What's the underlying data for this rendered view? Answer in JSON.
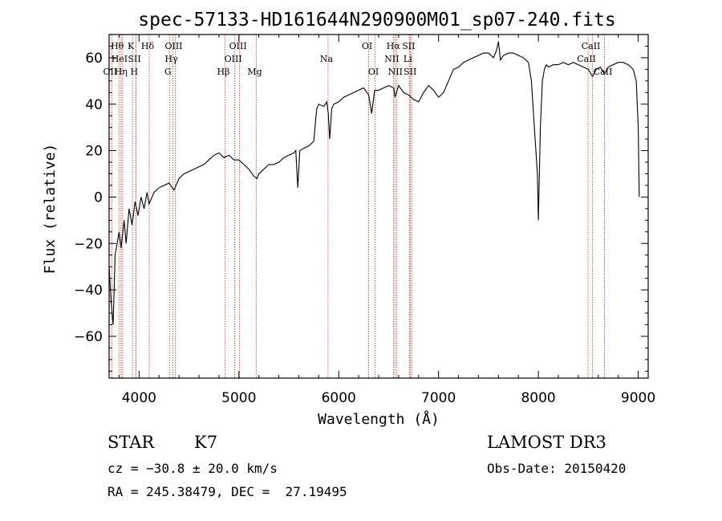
{
  "chart_data": {
    "type": "line",
    "title": "spec-57133-HD161644N290900M01_sp07-240.fits",
    "xlabel": "Wavelength (Å)",
    "ylabel": "Flux (relative)",
    "xlim": [
      3700,
      9100
    ],
    "ylim": [
      -78,
      70
    ],
    "x_ticks": [
      4000,
      5000,
      6000,
      7000,
      8000,
      9000
    ],
    "y_ticks": [
      -60,
      -40,
      -20,
      0,
      20,
      40,
      60
    ],
    "grid": false,
    "line_color": "#000000",
    "marker_color": "#cc3333",
    "series": [
      {
        "values": [
          [
            3700,
            -30
          ],
          [
            3720,
            -45
          ],
          [
            3740,
            -55
          ],
          [
            3760,
            -25
          ],
          [
            3780,
            -20
          ],
          [
            3800,
            -15
          ],
          [
            3820,
            -22
          ],
          [
            3850,
            -10
          ],
          [
            3870,
            -20
          ],
          [
            3900,
            -5
          ],
          [
            3930,
            -12
          ],
          [
            3960,
            -2
          ],
          [
            3990,
            -8
          ],
          [
            4020,
            0
          ],
          [
            4050,
            -5
          ],
          [
            4080,
            2
          ],
          [
            4100,
            -3
          ],
          [
            4150,
            2
          ],
          [
            4200,
            4
          ],
          [
            4250,
            5
          ],
          [
            4300,
            6
          ],
          [
            4350,
            3
          ],
          [
            4400,
            8
          ],
          [
            4450,
            10
          ],
          [
            4500,
            11
          ],
          [
            4550,
            12
          ],
          [
            4600,
            13
          ],
          [
            4650,
            14
          ],
          [
            4700,
            16
          ],
          [
            4750,
            18
          ],
          [
            4800,
            19
          ],
          [
            4850,
            17
          ],
          [
            4900,
            18
          ],
          [
            4950,
            16
          ],
          [
            5000,
            16
          ],
          [
            5050,
            14
          ],
          [
            5100,
            12
          ],
          [
            5150,
            9
          ],
          [
            5180,
            8
          ],
          [
            5200,
            10
          ],
          [
            5250,
            12
          ],
          [
            5300,
            14
          ],
          [
            5350,
            14
          ],
          [
            5400,
            15
          ],
          [
            5450,
            17
          ],
          [
            5500,
            18
          ],
          [
            5550,
            19
          ],
          [
            5570,
            20
          ],
          [
            5590,
            4
          ],
          [
            5610,
            20
          ],
          [
            5650,
            21
          ],
          [
            5700,
            22
          ],
          [
            5750,
            24
          ],
          [
            5780,
            38
          ],
          [
            5800,
            40
          ],
          [
            5850,
            39
          ],
          [
            5880,
            41
          ],
          [
            5895,
            36
          ],
          [
            5910,
            25
          ],
          [
            5930,
            38
          ],
          [
            5950,
            40
          ],
          [
            6000,
            41
          ],
          [
            6050,
            43
          ],
          [
            6100,
            44
          ],
          [
            6150,
            45
          ],
          [
            6200,
            46
          ],
          [
            6250,
            47
          ],
          [
            6300,
            44
          ],
          [
            6330,
            36
          ],
          [
            6360,
            46
          ],
          [
            6400,
            46
          ],
          [
            6450,
            47
          ],
          [
            6500,
            48
          ],
          [
            6550,
            47
          ],
          [
            6563,
            43
          ],
          [
            6600,
            48
          ],
          [
            6650,
            45
          ],
          [
            6700,
            44
          ],
          [
            6750,
            42
          ],
          [
            6800,
            41
          ],
          [
            6850,
            45
          ],
          [
            6900,
            48
          ],
          [
            6950,
            46
          ],
          [
            7000,
            43
          ],
          [
            7050,
            45
          ],
          [
            7100,
            50
          ],
          [
            7150,
            55
          ],
          [
            7200,
            56
          ],
          [
            7250,
            58
          ],
          [
            7300,
            59
          ],
          [
            7350,
            60
          ],
          [
            7400,
            61
          ],
          [
            7450,
            62
          ],
          [
            7500,
            62
          ],
          [
            7550,
            60
          ],
          [
            7580,
            63
          ],
          [
            7600,
            67
          ],
          [
            7620,
            59
          ],
          [
            7650,
            61
          ],
          [
            7700,
            62
          ],
          [
            7750,
            62
          ],
          [
            7800,
            61
          ],
          [
            7850,
            60
          ],
          [
            7900,
            58
          ],
          [
            7930,
            50
          ],
          [
            7960,
            30
          ],
          [
            7990,
            10
          ],
          [
            8000,
            -10
          ],
          [
            8020,
            30
          ],
          [
            8040,
            50
          ],
          [
            8060,
            55
          ],
          [
            8080,
            57
          ],
          [
            8100,
            56
          ],
          [
            8150,
            57
          ],
          [
            8200,
            57
          ],
          [
            8250,
            58
          ],
          [
            8300,
            57
          ],
          [
            8350,
            58
          ],
          [
            8400,
            57
          ],
          [
            8450,
            56
          ],
          [
            8500,
            55
          ],
          [
            8542,
            52
          ],
          [
            8580,
            55
          ],
          [
            8620,
            56
          ],
          [
            8662,
            53
          ],
          [
            8700,
            56
          ],
          [
            8750,
            57
          ],
          [
            8800,
            58
          ],
          [
            8850,
            58
          ],
          [
            8900,
            57
          ],
          [
            8950,
            55
          ],
          [
            8980,
            50
          ],
          [
            9000,
            30
          ],
          [
            9010,
            0
          ]
        ]
      }
    ],
    "spectral_lines": [
      {
        "name": "OII",
        "wave": 3727,
        "row": 3
      },
      {
        "name": "Hθ",
        "wave": 3798,
        "row": 1
      },
      {
        "name": "HeI",
        "wave": 3820,
        "row": 2
      },
      {
        "name": "Hη",
        "wave": 3835,
        "row": 3
      },
      {
        "name": "K",
        "wave": 3934,
        "row": 1
      },
      {
        "name": "SII",
        "wave": 3970,
        "row": 2
      },
      {
        "name": "H",
        "wave": 3968,
        "row": 3
      },
      {
        "name": "Hδ",
        "wave": 4102,
        "row": 1
      },
      {
        "name": "G",
        "wave": 4305,
        "row": 3
      },
      {
        "name": "Hγ",
        "wave": 4340,
        "row": 2
      },
      {
        "name": "OIII",
        "wave": 4363,
        "row": 1
      },
      {
        "name": "Hβ",
        "wave": 4861,
        "row": 3
      },
      {
        "name": "OIII",
        "wave": 4959,
        "row": 2
      },
      {
        "name": "OIII",
        "wave": 5007,
        "row": 1
      },
      {
        "name": "Mg",
        "wave": 5175,
        "row": 3
      },
      {
        "name": "Na",
        "wave": 5893,
        "row": 2
      },
      {
        "name": "OI",
        "wave": 6300,
        "row": 1
      },
      {
        "name": "OI",
        "wave": 6364,
        "row": 3
      },
      {
        "name": "NII",
        "wave": 6548,
        "row": 2
      },
      {
        "name": "Hα",
        "wave": 6563,
        "row": 1
      },
      {
        "name": "NII",
        "wave": 6583,
        "row": 3
      },
      {
        "name": "SII",
        "wave": 6716,
        "row": 1
      },
      {
        "name": "Li",
        "wave": 6708,
        "row": 2
      },
      {
        "name": "SII",
        "wave": 6731,
        "row": 3
      },
      {
        "name": "CaII",
        "wave": 8498,
        "row": 2
      },
      {
        "name": "CaII",
        "wave": 8542,
        "row": 1
      },
      {
        "name": "CaII",
        "wave": 8662,
        "row": 3
      }
    ]
  },
  "info": {
    "object_class": "STAR",
    "subclass": "K7",
    "survey": "LAMOST DR3",
    "redshift": "cz = −30.8 ± 20.0 km/s",
    "obs_date": "Obs-Date: 20150420",
    "coords": "RA = 245.38479, DEC =  27.19495"
  }
}
